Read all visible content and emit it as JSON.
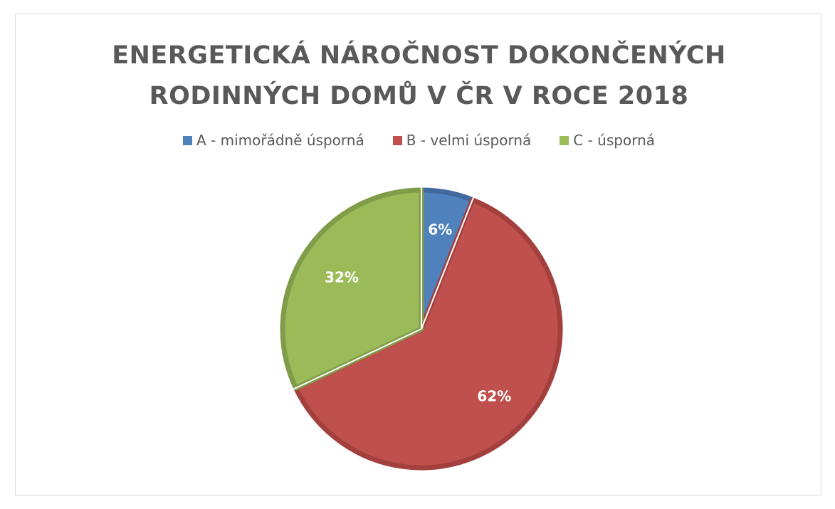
{
  "chart_data": {
    "type": "pie",
    "title_lines": [
      "ENERGETICKÁ NÁROČNOST DOKONČENÝCH",
      "RODINNÝCH DOMŮ V ČR V ROCE 2018"
    ],
    "categories": [
      "A - mimořádně úsporná",
      "B - velmi úsporná",
      "C - úsporná"
    ],
    "values": [
      6,
      62,
      32
    ],
    "data_labels": [
      "6%",
      "62%",
      "32%"
    ],
    "colors": [
      "#4f81bd",
      "#c0504d",
      "#9bbb59"
    ],
    "border_colors": [
      "#41699c",
      "#a3403d",
      "#7f9c48"
    ],
    "legend_position": "top"
  }
}
